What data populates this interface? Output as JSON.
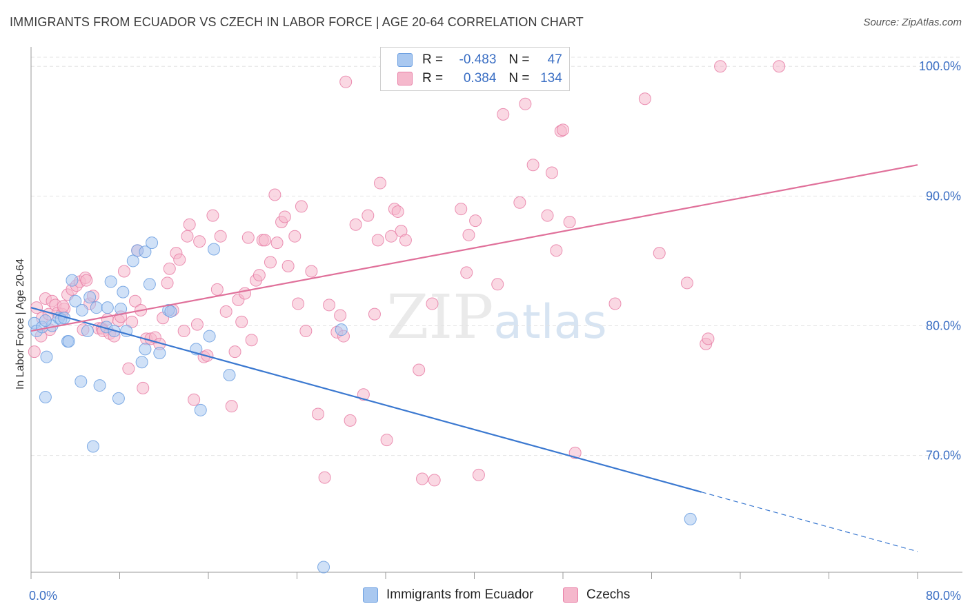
{
  "title": "IMMIGRANTS FROM ECUADOR VS CZECH IN LABOR FORCE | AGE 20-64 CORRELATION CHART",
  "source": "Source: ZipAtlas.com",
  "watermark": "ZIPatlas",
  "legend": {
    "rows": [
      {
        "r_label": "R =",
        "r_value": "-0.483",
        "n_label": "N =",
        "n_value": "47",
        "color": "#a9c8f0"
      },
      {
        "r_label": "R =",
        "r_value": "0.384",
        "n_label": "N =",
        "n_value": "134",
        "color": "#f5b8cc"
      }
    ]
  },
  "bottom_legend": [
    {
      "label": "Immigrants from Ecuador",
      "color": "#a9c8f0"
    },
    {
      "label": "Czechs",
      "color": "#f5b8cc"
    }
  ],
  "chart_data": {
    "type": "scatter",
    "title": "IMMIGRANTS FROM ECUADOR VS CZECH IN LABOR FORCE | AGE 20-64 CORRELATION CHART",
    "xlabel": "",
    "ylabel": "In Labor Force | Age 20-64",
    "xlim": [
      0,
      80
    ],
    "ylim": [
      61,
      101.5
    ],
    "x_tick_labels": [
      "0.0%",
      "80.0%"
    ],
    "y_ticks": [
      70,
      80,
      90,
      100
    ],
    "y_tick_labels": [
      "70.0%",
      "80.0%",
      "90.0%",
      "100.0%"
    ],
    "grid": true,
    "legend_position": "top-center",
    "series": [
      {
        "name": "Immigrants from Ecuador",
        "color": "#6a9ee0",
        "fill": "#a9c8f0",
        "trend": {
          "x0": 0,
          "y0": 81.4,
          "x1": 80,
          "y1": 62.6,
          "solid_until": 60.5
        },
        "points": [
          [
            0.3,
            80.2
          ],
          [
            0.5,
            79.6
          ],
          [
            1.0,
            79.9
          ],
          [
            1.4,
            77.6
          ],
          [
            1.9,
            80.0
          ],
          [
            2.5,
            80.6
          ],
          [
            2.7,
            80.5
          ],
          [
            1.3,
            74.5
          ],
          [
            3.3,
            78.8
          ],
          [
            3.4,
            78.8
          ],
          [
            3.7,
            83.5
          ],
          [
            4.0,
            81.9
          ],
          [
            4.5,
            75.7
          ],
          [
            4.6,
            81.2
          ],
          [
            5.1,
            79.6
          ],
          [
            5.3,
            82.2
          ],
          [
            5.6,
            70.7
          ],
          [
            5.9,
            81.4
          ],
          [
            6.2,
            75.4
          ],
          [
            6.8,
            79.9
          ],
          [
            6.9,
            81.4
          ],
          [
            7.2,
            83.4
          ],
          [
            7.5,
            79.6
          ],
          [
            7.9,
            74.4
          ],
          [
            8.1,
            81.3
          ],
          [
            8.3,
            82.6
          ],
          [
            8.6,
            79.6
          ],
          [
            9.2,
            85.0
          ],
          [
            9.6,
            85.8
          ],
          [
            10.0,
            77.2
          ],
          [
            10.3,
            78.2
          ],
          [
            10.3,
            85.7
          ],
          [
            10.7,
            83.2
          ],
          [
            10.9,
            86.4
          ],
          [
            11.6,
            77.9
          ],
          [
            12.4,
            81.2
          ],
          [
            12.6,
            81.1
          ],
          [
            14.9,
            78.2
          ],
          [
            15.3,
            73.5
          ],
          [
            16.1,
            79.2
          ],
          [
            16.5,
            85.9
          ],
          [
            17.9,
            76.2
          ],
          [
            26.4,
            61.4
          ],
          [
            28.0,
            79.7
          ],
          [
            59.5,
            65.1
          ],
          [
            1.3,
            80.4
          ],
          [
            3.0,
            80.6
          ]
        ]
      },
      {
        "name": "Czechs",
        "color": "#e87ea6",
        "fill": "#f5b8cc",
        "trend": {
          "x0": 0,
          "y0": 79.6,
          "x1": 80,
          "y1": 92.4
        },
        "points": [
          [
            0.3,
            78.0
          ],
          [
            0.5,
            81.4
          ],
          [
            1.0,
            80.6
          ],
          [
            1.3,
            82.1
          ],
          [
            1.6,
            80.9
          ],
          [
            1.9,
            81.9
          ],
          [
            2.2,
            81.6
          ],
          [
            2.4,
            81.0
          ],
          [
            2.8,
            80.9
          ],
          [
            3.0,
            81.3
          ],
          [
            3.3,
            82.4
          ],
          [
            3.7,
            82.8
          ],
          [
            4.1,
            83.1
          ],
          [
            4.4,
            83.4
          ],
          [
            4.7,
            79.7
          ],
          [
            4.9,
            83.7
          ],
          [
            5.0,
            83.5
          ],
          [
            5.3,
            81.7
          ],
          [
            5.6,
            82.3
          ],
          [
            6.1,
            79.8
          ],
          [
            6.4,
            79.8
          ],
          [
            6.5,
            79.6
          ],
          [
            6.9,
            80.5
          ],
          [
            7.1,
            79.4
          ],
          [
            7.5,
            79.2
          ],
          [
            7.9,
            80.4
          ],
          [
            8.1,
            80.7
          ],
          [
            8.4,
            84.2
          ],
          [
            8.8,
            76.7
          ],
          [
            9.1,
            80.3
          ],
          [
            9.4,
            81.9
          ],
          [
            9.6,
            85.8
          ],
          [
            9.9,
            81.2
          ],
          [
            10.1,
            75.2
          ],
          [
            10.4,
            79.0
          ],
          [
            10.8,
            79.0
          ],
          [
            11.2,
            79.1
          ],
          [
            11.6,
            78.6
          ],
          [
            11.9,
            80.6
          ],
          [
            12.3,
            83.3
          ],
          [
            12.5,
            84.4
          ],
          [
            12.8,
            81.2
          ],
          [
            13.1,
            85.6
          ],
          [
            13.4,
            85.1
          ],
          [
            13.8,
            79.6
          ],
          [
            14.1,
            86.9
          ],
          [
            14.3,
            87.8
          ],
          [
            14.7,
            74.3
          ],
          [
            15.0,
            80.1
          ],
          [
            15.2,
            86.5
          ],
          [
            15.6,
            77.6
          ],
          [
            15.9,
            77.7
          ],
          [
            16.4,
            88.5
          ],
          [
            16.8,
            82.8
          ],
          [
            17.1,
            86.9
          ],
          [
            17.6,
            81.1
          ],
          [
            18.1,
            73.8
          ],
          [
            18.4,
            78.0
          ],
          [
            18.7,
            82.0
          ],
          [
            19.0,
            80.3
          ],
          [
            19.3,
            82.5
          ],
          [
            19.6,
            86.8
          ],
          [
            19.9,
            78.9
          ],
          [
            20.3,
            83.5
          ],
          [
            20.6,
            83.9
          ],
          [
            20.9,
            86.6
          ],
          [
            21.1,
            86.6
          ],
          [
            21.6,
            84.9
          ],
          [
            22.0,
            90.1
          ],
          [
            22.2,
            86.4
          ],
          [
            22.6,
            88.0
          ],
          [
            22.9,
            88.4
          ],
          [
            23.2,
            84.6
          ],
          [
            23.8,
            86.9
          ],
          [
            24.1,
            81.7
          ],
          [
            24.4,
            89.2
          ],
          [
            24.8,
            79.6
          ],
          [
            25.3,
            84.2
          ],
          [
            25.9,
            73.2
          ],
          [
            26.5,
            68.3
          ],
          [
            26.9,
            81.6
          ],
          [
            27.6,
            79.5
          ],
          [
            27.9,
            80.8
          ],
          [
            28.2,
            79.2
          ],
          [
            28.4,
            98.8
          ],
          [
            28.8,
            72.7
          ],
          [
            29.3,
            87.8
          ],
          [
            30.0,
            74.7
          ],
          [
            30.4,
            88.5
          ],
          [
            31.0,
            80.9
          ],
          [
            31.3,
            86.6
          ],
          [
            31.5,
            91.0
          ],
          [
            32.1,
            71.2
          ],
          [
            32.5,
            86.9
          ],
          [
            32.8,
            89.0
          ],
          [
            33.1,
            88.8
          ],
          [
            33.4,
            87.3
          ],
          [
            33.8,
            86.6
          ],
          [
            35.0,
            76.6
          ],
          [
            35.3,
            68.2
          ],
          [
            35.8,
            100.0
          ],
          [
            36.2,
            81.7
          ],
          [
            36.4,
            68.1
          ],
          [
            38.8,
            89.0
          ],
          [
            39.3,
            84.1
          ],
          [
            39.5,
            87.0
          ],
          [
            40.1,
            88.1
          ],
          [
            40.4,
            68.5
          ],
          [
            42.1,
            83.2
          ],
          [
            42.6,
            96.3
          ],
          [
            43.5,
            100.0
          ],
          [
            44.1,
            89.5
          ],
          [
            44.6,
            97.1
          ],
          [
            45.3,
            92.4
          ],
          [
            46.6,
            88.5
          ],
          [
            47.0,
            91.8
          ],
          [
            47.4,
            85.8
          ],
          [
            47.8,
            95.0
          ],
          [
            48.0,
            95.1
          ],
          [
            49.1,
            70.2
          ],
          [
            52.7,
            81.7
          ],
          [
            55.4,
            97.5
          ],
          [
            56.7,
            85.6
          ],
          [
            59.2,
            83.3
          ],
          [
            60.9,
            78.6
          ],
          [
            61.1,
            79.0
          ],
          [
            62.2,
            100.0
          ],
          [
            67.5,
            100.0
          ],
          [
            48.6,
            88.0
          ],
          [
            1.7,
            79.7
          ],
          [
            2.9,
            81.5
          ],
          [
            0.9,
            79.2
          ]
        ]
      }
    ]
  }
}
